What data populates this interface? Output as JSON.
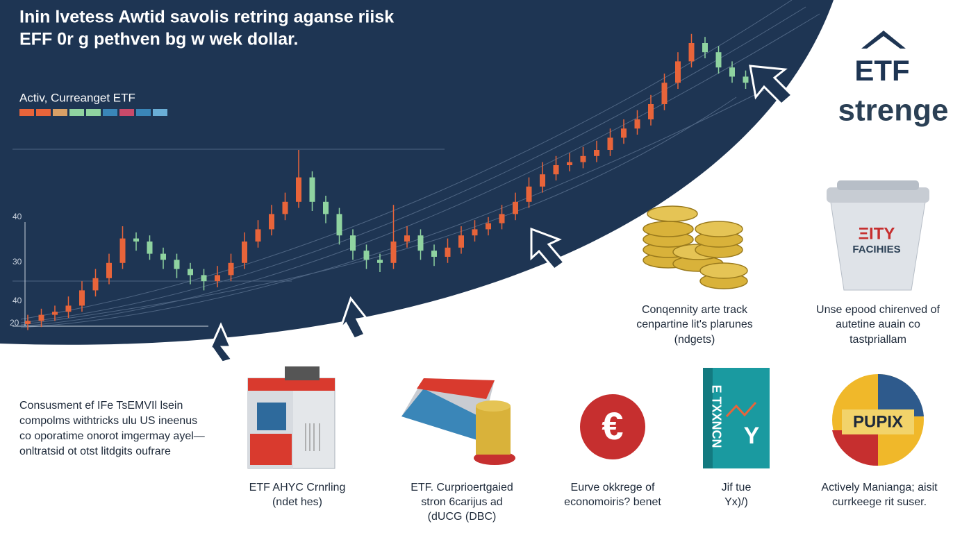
{
  "header": {
    "title_lines": [
      "Inin lvetess Awtid savolis retring aganse riisk",
      "EFF 0r g pethven bg w wek dollar."
    ],
    "legend_label": "Activ, Curreanget ETF",
    "legend_colors": [
      "#e8643a",
      "#e8643a",
      "#d9a066",
      "#8fd3a0",
      "#8fd3a0",
      "#3a86b8",
      "#c94a6a",
      "#3a86b8",
      "#6aaed6"
    ]
  },
  "chart": {
    "axis_labels": [
      "40",
      "30",
      "40",
      "20"
    ],
    "ylim": [
      0,
      100
    ],
    "up_color": "#e8643a",
    "down_color": "#8fd3a0",
    "candles": [
      [
        3,
        4,
        6,
        1
      ],
      [
        4,
        6,
        8,
        2
      ],
      [
        6,
        7,
        9,
        4
      ],
      [
        7,
        9,
        12,
        5
      ],
      [
        9,
        14,
        17,
        7
      ],
      [
        14,
        18,
        21,
        12
      ],
      [
        18,
        23,
        26,
        16
      ],
      [
        23,
        31,
        35,
        21
      ],
      [
        31,
        30,
        33,
        27
      ],
      [
        30,
        26,
        32,
        24
      ],
      [
        26,
        24,
        28,
        21
      ],
      [
        24,
        21,
        26,
        18
      ],
      [
        21,
        19,
        23,
        16
      ],
      [
        19,
        17,
        21,
        14
      ],
      [
        17,
        19,
        22,
        15
      ],
      [
        19,
        23,
        26,
        17
      ],
      [
        23,
        30,
        33,
        21
      ],
      [
        30,
        34,
        37,
        28
      ],
      [
        34,
        39,
        42,
        32
      ],
      [
        39,
        43,
        46,
        37
      ],
      [
        43,
        51,
        60,
        41
      ],
      [
        51,
        43,
        53,
        40
      ],
      [
        43,
        39,
        45,
        36
      ],
      [
        39,
        32,
        41,
        29
      ],
      [
        32,
        27,
        34,
        24
      ],
      [
        27,
        24,
        29,
        21
      ],
      [
        24,
        23,
        26,
        20
      ],
      [
        23,
        30,
        42,
        21
      ],
      [
        30,
        32,
        35,
        28
      ],
      [
        32,
        27,
        34,
        24
      ],
      [
        27,
        25,
        29,
        22
      ],
      [
        25,
        28,
        31,
        23
      ],
      [
        28,
        32,
        35,
        26
      ],
      [
        32,
        34,
        37,
        30
      ],
      [
        34,
        36,
        38,
        32
      ],
      [
        36,
        39,
        42,
        34
      ],
      [
        39,
        43,
        46,
        37
      ],
      [
        43,
        48,
        51,
        41
      ],
      [
        48,
        52,
        56,
        46
      ],
      [
        52,
        55,
        58,
        50
      ],
      [
        55,
        56,
        59,
        53
      ],
      [
        56,
        58,
        61,
        54
      ],
      [
        58,
        60,
        63,
        56
      ],
      [
        60,
        64,
        67,
        58
      ],
      [
        64,
        67,
        70,
        62
      ],
      [
        67,
        70,
        73,
        65
      ],
      [
        70,
        75,
        78,
        68
      ],
      [
        75,
        82,
        85,
        73
      ],
      [
        82,
        89,
        92,
        80
      ],
      [
        89,
        95,
        98,
        87
      ],
      [
        95,
        92,
        97,
        90
      ],
      [
        92,
        87,
        94,
        85
      ],
      [
        87,
        84,
        89,
        82
      ],
      [
        84,
        82,
        86,
        80
      ]
    ]
  },
  "brand": {
    "line1": "ETF",
    "line2": "strenge"
  },
  "coins_caption": [
    "Conqennity arte track",
    "cenpartine lit's plarunes",
    "(ndgets)"
  ],
  "cup": {
    "label1": "ΞITY",
    "label2": "FACIHIES",
    "caption": [
      "Unse epood chirenved of",
      "autetine auain co",
      "tastpriallam"
    ]
  },
  "paragraph": [
    "Consusment ef IFe TsEMVIl lsein",
    "compolms withtricks ulu US ineenus",
    "co oporatime onorot imgermay ayel—",
    "onltratsid ot otst litdgits oufrare"
  ],
  "items": [
    {
      "caption": [
        "ETF AНYC Crnrling",
        "(ndet hes)"
      ]
    },
    {
      "caption": [
        "ETF. Curprioertgaied",
        "stron 6carijus ad",
        "(dUCG (DBC)"
      ]
    },
    {
      "caption": [
        "Eurve okkrege of",
        "economoiris? benet"
      ]
    },
    {
      "caption": [
        "Jif tue",
        "Yx)/)"
      ],
      "book_text": "E TXXNCN",
      "book_letter": "Y"
    },
    {
      "caption": [
        "Actively Manianga; aisit",
        "currkeege rit suser."
      ],
      "coin_text": "PUPIX"
    }
  ]
}
